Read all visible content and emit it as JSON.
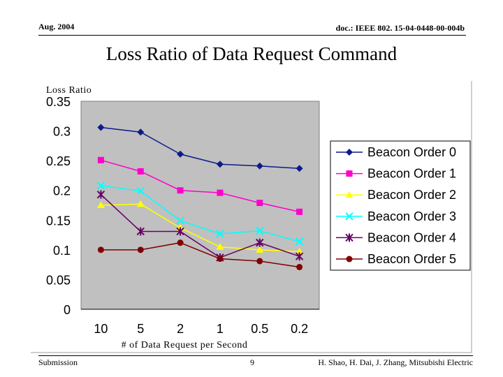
{
  "header": {
    "date": "Aug. 2004",
    "doc": "doc.: IEEE 802. 15-04-0448-00-004b"
  },
  "slide_title": "Loss Ratio of Data Request Command",
  "footer": {
    "left": "Submission",
    "page": "9",
    "authors": "H. Shao, H. Dai, J. Zhang, Mitsubishi Electric"
  },
  "chart_data": {
    "type": "line",
    "title": "Loss Ratio of Data Request Command",
    "ylabel": "Loss Ratio",
    "xlabel": "# of Data Request per Second",
    "categories": [
      "10",
      "5",
      "2",
      "1",
      "0.5",
      "0.2"
    ],
    "ylim": [
      0,
      0.35
    ],
    "yticks": [
      "0.35",
      "0.3",
      "0.25",
      "0.2",
      "0.15",
      "0.1",
      "0.05",
      "0"
    ],
    "ytick_values": [
      0.35,
      0.3,
      0.25,
      0.2,
      0.15,
      0.1,
      0.05,
      0
    ],
    "grid": false,
    "plot_background": "#c0c0c0",
    "legend_position": "right",
    "series": [
      {
        "name": "Beacon Order 0",
        "color": "#0d1a8a",
        "marker": "diamond",
        "values": [
          0.306,
          0.298,
          0.261,
          0.244,
          0.241,
          0.237
        ]
      },
      {
        "name": "Beacon Order 1",
        "color": "#ff00cc",
        "marker": "square",
        "values": [
          0.251,
          0.232,
          0.2,
          0.196,
          0.179,
          0.164
        ]
      },
      {
        "name": "Beacon Order 2",
        "color": "#ffff00",
        "marker": "triangle",
        "values": [
          0.175,
          0.177,
          0.137,
          0.105,
          0.1,
          0.097
        ]
      },
      {
        "name": "Beacon Order 3",
        "color": "#00ffff",
        "marker": "x",
        "values": [
          0.208,
          0.199,
          0.149,
          0.127,
          0.132,
          0.114
        ]
      },
      {
        "name": "Beacon Order 4",
        "color": "#660066",
        "marker": "star",
        "values": [
          0.193,
          0.131,
          0.131,
          0.087,
          0.112,
          0.089
        ]
      },
      {
        "name": "Beacon Order 5",
        "color": "#800000",
        "marker": "circle",
        "values": [
          0.1,
          0.1,
          0.112,
          0.085,
          0.081,
          0.071
        ]
      }
    ]
  }
}
